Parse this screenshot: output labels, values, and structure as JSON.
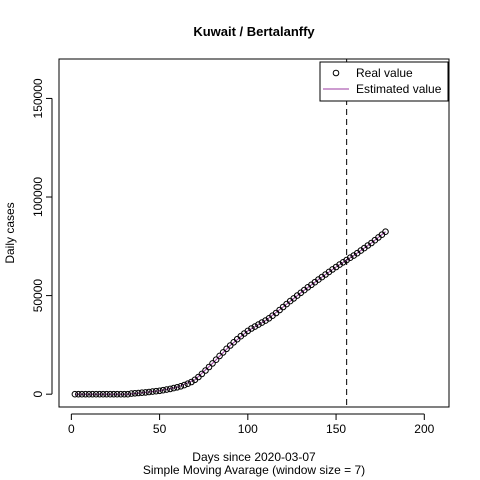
{
  "chart_data": {
    "type": "scatter",
    "title": "Kuwait / Bertalanffy",
    "xlabel": "Days since 2020-03-07",
    "subtitle": "Simple Moving Avarage (window size = 7)",
    "ylabel": "Daily cases",
    "xlim": [
      -7,
      214
    ],
    "ylim": [
      -6500,
      170000
    ],
    "xticks": [
      0,
      50,
      100,
      150,
      200
    ],
    "xtick_labels": [
      "0",
      "50",
      "100",
      "150",
      "200"
    ],
    "yticks": [
      0,
      50000,
      100000,
      150000
    ],
    "ytick_labels": [
      "0",
      "50000",
      "100000",
      "150000"
    ],
    "vline_x": 156,
    "legend": {
      "position": "top-right",
      "entries": [
        {
          "label": "Real value",
          "symbol": "circle",
          "color": "#000000"
        },
        {
          "label": "Estimated value",
          "symbol": "line",
          "color": "#9b3aa0"
        }
      ]
    },
    "series": [
      {
        "name": "Real value",
        "marker": "open-circle",
        "color": "#000000",
        "points": [
          [
            2,
            0
          ],
          [
            4,
            0
          ],
          [
            6,
            0
          ],
          [
            8,
            0
          ],
          [
            10,
            0
          ],
          [
            12,
            0
          ],
          [
            14,
            0
          ],
          [
            16,
            0
          ],
          [
            18,
            0
          ],
          [
            20,
            0
          ],
          [
            22,
            0
          ],
          [
            24,
            0
          ],
          [
            26,
            0
          ],
          [
            28,
            0
          ],
          [
            30,
            0
          ],
          [
            32,
            0
          ],
          [
            34,
            300
          ],
          [
            36,
            450
          ],
          [
            38,
            600
          ],
          [
            40,
            750
          ],
          [
            42,
            900
          ],
          [
            44,
            1100
          ],
          [
            46,
            1300
          ],
          [
            48,
            1500
          ],
          [
            50,
            1700
          ],
          [
            52,
            2000
          ],
          [
            54,
            2300
          ],
          [
            56,
            2700
          ],
          [
            58,
            3100
          ],
          [
            60,
            3500
          ],
          [
            62,
            4000
          ],
          [
            64,
            4600
          ],
          [
            66,
            5300
          ],
          [
            68,
            6200
          ],
          [
            70,
            7300
          ],
          [
            72,
            8700
          ],
          [
            74,
            10300
          ],
          [
            76,
            12000
          ],
          [
            78,
            13800
          ],
          [
            80,
            15600
          ],
          [
            82,
            17500
          ],
          [
            84,
            19400
          ],
          [
            86,
            21200
          ],
          [
            88,
            23000
          ],
          [
            90,
            24700
          ],
          [
            92,
            26300
          ],
          [
            94,
            27900
          ],
          [
            96,
            29400
          ],
          [
            98,
            30800
          ],
          [
            100,
            32100
          ],
          [
            102,
            33300
          ],
          [
            104,
            34300
          ],
          [
            106,
            35300
          ],
          [
            108,
            36300
          ],
          [
            110,
            37300
          ],
          [
            112,
            38500
          ],
          [
            114,
            39800
          ],
          [
            116,
            41200
          ],
          [
            118,
            42700
          ],
          [
            120,
            44200
          ],
          [
            122,
            45700
          ],
          [
            124,
            47200
          ],
          [
            126,
            48600
          ],
          [
            128,
            50000
          ],
          [
            130,
            51400
          ],
          [
            132,
            52800
          ],
          [
            134,
            54200
          ],
          [
            136,
            55500
          ],
          [
            138,
            56800
          ],
          [
            140,
            58100
          ],
          [
            142,
            59400
          ],
          [
            144,
            60700
          ],
          [
            146,
            62000
          ],
          [
            148,
            63300
          ],
          [
            150,
            64500
          ],
          [
            152,
            65700
          ],
          [
            154,
            66900
          ],
          [
            156,
            68000
          ],
          [
            158,
            69200
          ],
          [
            160,
            70300
          ],
          [
            162,
            71500
          ],
          [
            164,
            72800
          ],
          [
            166,
            74100
          ],
          [
            168,
            75400
          ],
          [
            170,
            76700
          ],
          [
            172,
            78100
          ],
          [
            174,
            79500
          ],
          [
            176,
            80900
          ],
          [
            178,
            82400
          ]
        ]
      },
      {
        "name": "Estimated value",
        "marker": "line",
        "color": "#9b3aa0",
        "points": [
          [
            2,
            0
          ],
          [
            32,
            0
          ],
          [
            40,
            750
          ],
          [
            50,
            1700
          ],
          [
            60,
            3500
          ],
          [
            70,
            7300
          ],
          [
            80,
            15600
          ],
          [
            90,
            24700
          ],
          [
            100,
            32100
          ],
          [
            110,
            37300
          ],
          [
            120,
            44200
          ],
          [
            130,
            51400
          ],
          [
            140,
            58100
          ],
          [
            150,
            64500
          ],
          [
            160,
            70300
          ],
          [
            170,
            76700
          ],
          [
            178,
            82400
          ]
        ]
      }
    ]
  }
}
